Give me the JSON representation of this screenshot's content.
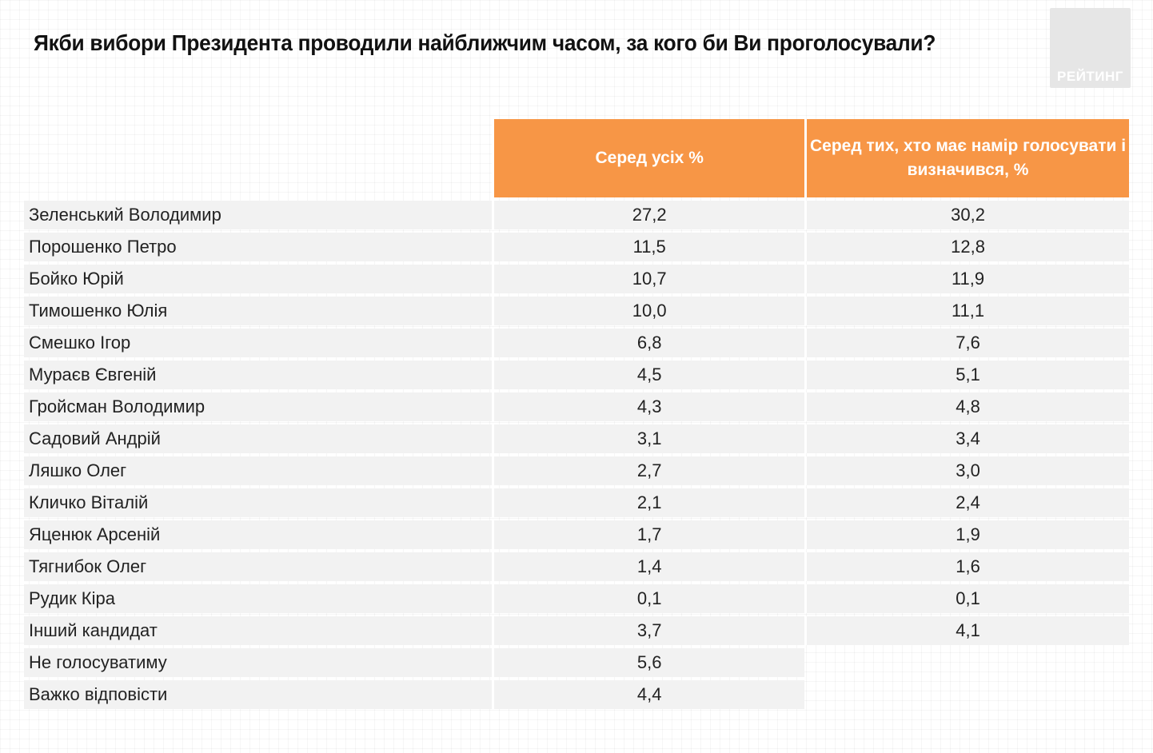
{
  "title": "Якби вибори Президента проводили найближчим часом, за кого би Ви проголосували?",
  "logo_text": "РЕЙТИНГ",
  "table": {
    "headers": [
      "",
      "Серед усіх %",
      "Серед тих, хто має намір голосувати і визначився, %"
    ],
    "rows": [
      {
        "name": "Зеленський Володимир",
        "all": "27,2",
        "decided": "30,2"
      },
      {
        "name": "Порошенко Петро",
        "all": "11,5",
        "decided": "12,8"
      },
      {
        "name": "Бойко Юрій",
        "all": "10,7",
        "decided": "11,9"
      },
      {
        "name": "Тимошенко Юлія",
        "all": "10,0",
        "decided": "11,1"
      },
      {
        "name": "Смешко Ігор",
        "all": "6,8",
        "decided": "7,6"
      },
      {
        "name": "Мураєв Євгеній",
        "all": "4,5",
        "decided": "5,1"
      },
      {
        "name": "Гройсман Володимир",
        "all": "4,3",
        "decided": "4,8"
      },
      {
        "name": "Садовий Андрій",
        "all": "3,1",
        "decided": "3,4"
      },
      {
        "name": "Ляшко Олег",
        "all": "2,7",
        "decided": "3,0"
      },
      {
        "name": "Кличко Віталій",
        "all": "2,1",
        "decided": "2,4"
      },
      {
        "name": "Яценюк  Арсеній",
        "all": "1,7",
        "decided": "1,9"
      },
      {
        "name": "Тягнибок Олег",
        "all": "1,4",
        "decided": "1,6"
      },
      {
        "name": "Рудик Кіра",
        "all": "0,1",
        "decided": "0,1"
      },
      {
        "name": "Інший кандидат",
        "all": "3,7",
        "decided": "4,1"
      },
      {
        "name": "Не голосуватиму",
        "all": "5,6",
        "decided": null
      },
      {
        "name": "Важко відповісти",
        "all": "4,4",
        "decided": null
      }
    ]
  },
  "colors": {
    "header_bg": "#f79646",
    "row_bg": "#f2f2f2",
    "logo_bg": "#e6e6e6"
  }
}
